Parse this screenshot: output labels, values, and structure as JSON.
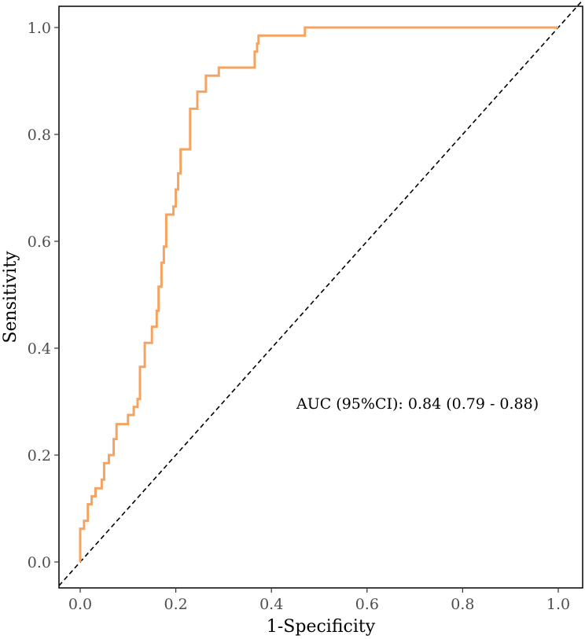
{
  "chart_data": {
    "type": "line",
    "title": "",
    "xlabel": "1-Specificity",
    "ylabel": "Sensitivity",
    "xlim": [
      0,
      1
    ],
    "ylim": [
      0,
      1
    ],
    "x_ticks": [
      "0.0",
      "0.2",
      "0.4",
      "0.6",
      "0.8",
      "1.0"
    ],
    "y_ticks": [
      "0.0",
      "0.2",
      "0.4",
      "0.6",
      "0.8",
      "1.0"
    ],
    "grid": false,
    "annotation": "AUC (95%CI): 0.84 (0.79 - 0.88)",
    "reference_line": {
      "style": "dashed",
      "color": "#000000",
      "from": [
        0,
        0
      ],
      "to": [
        1,
        1
      ]
    },
    "series": [
      {
        "color": "#F4A460",
        "x": [
          0.0,
          0.0,
          0.008,
          0.008,
          0.016,
          0.016,
          0.024,
          0.024,
          0.032,
          0.032,
          0.045,
          0.045,
          0.05,
          0.05,
          0.06,
          0.06,
          0.07,
          0.07,
          0.076,
          0.076,
          0.08,
          0.08,
          0.1,
          0.1,
          0.112,
          0.112,
          0.12,
          0.12,
          0.125,
          0.125,
          0.135,
          0.135,
          0.14,
          0.14,
          0.15,
          0.15,
          0.16,
          0.16,
          0.164,
          0.164,
          0.17,
          0.17,
          0.175,
          0.175,
          0.18,
          0.18,
          0.195,
          0.195,
          0.2,
          0.2,
          0.205,
          0.205,
          0.21,
          0.21,
          0.23,
          0.23,
          0.245,
          0.245,
          0.263,
          0.263,
          0.267,
          0.267,
          0.29,
          0.29,
          0.365,
          0.365,
          0.37,
          0.37,
          0.373,
          0.373,
          0.47,
          0.47,
          1.0
        ],
        "y": [
          0.0,
          0.062,
          0.062,
          0.077,
          0.077,
          0.108,
          0.108,
          0.123,
          0.123,
          0.138,
          0.138,
          0.154,
          0.154,
          0.185,
          0.185,
          0.2,
          0.2,
          0.23,
          0.23,
          0.258,
          0.258,
          0.258,
          0.258,
          0.275,
          0.275,
          0.29,
          0.29,
          0.305,
          0.305,
          0.365,
          0.365,
          0.41,
          0.41,
          0.41,
          0.41,
          0.44,
          0.44,
          0.47,
          0.47,
          0.515,
          0.515,
          0.56,
          0.56,
          0.59,
          0.59,
          0.65,
          0.65,
          0.665,
          0.665,
          0.697,
          0.697,
          0.727,
          0.727,
          0.772,
          0.772,
          0.848,
          0.848,
          0.88,
          0.88,
          0.91,
          0.91,
          0.91,
          0.91,
          0.925,
          0.925,
          0.955,
          0.955,
          0.97,
          0.97,
          0.985,
          0.985,
          1.0,
          1.0
        ]
      }
    ]
  }
}
